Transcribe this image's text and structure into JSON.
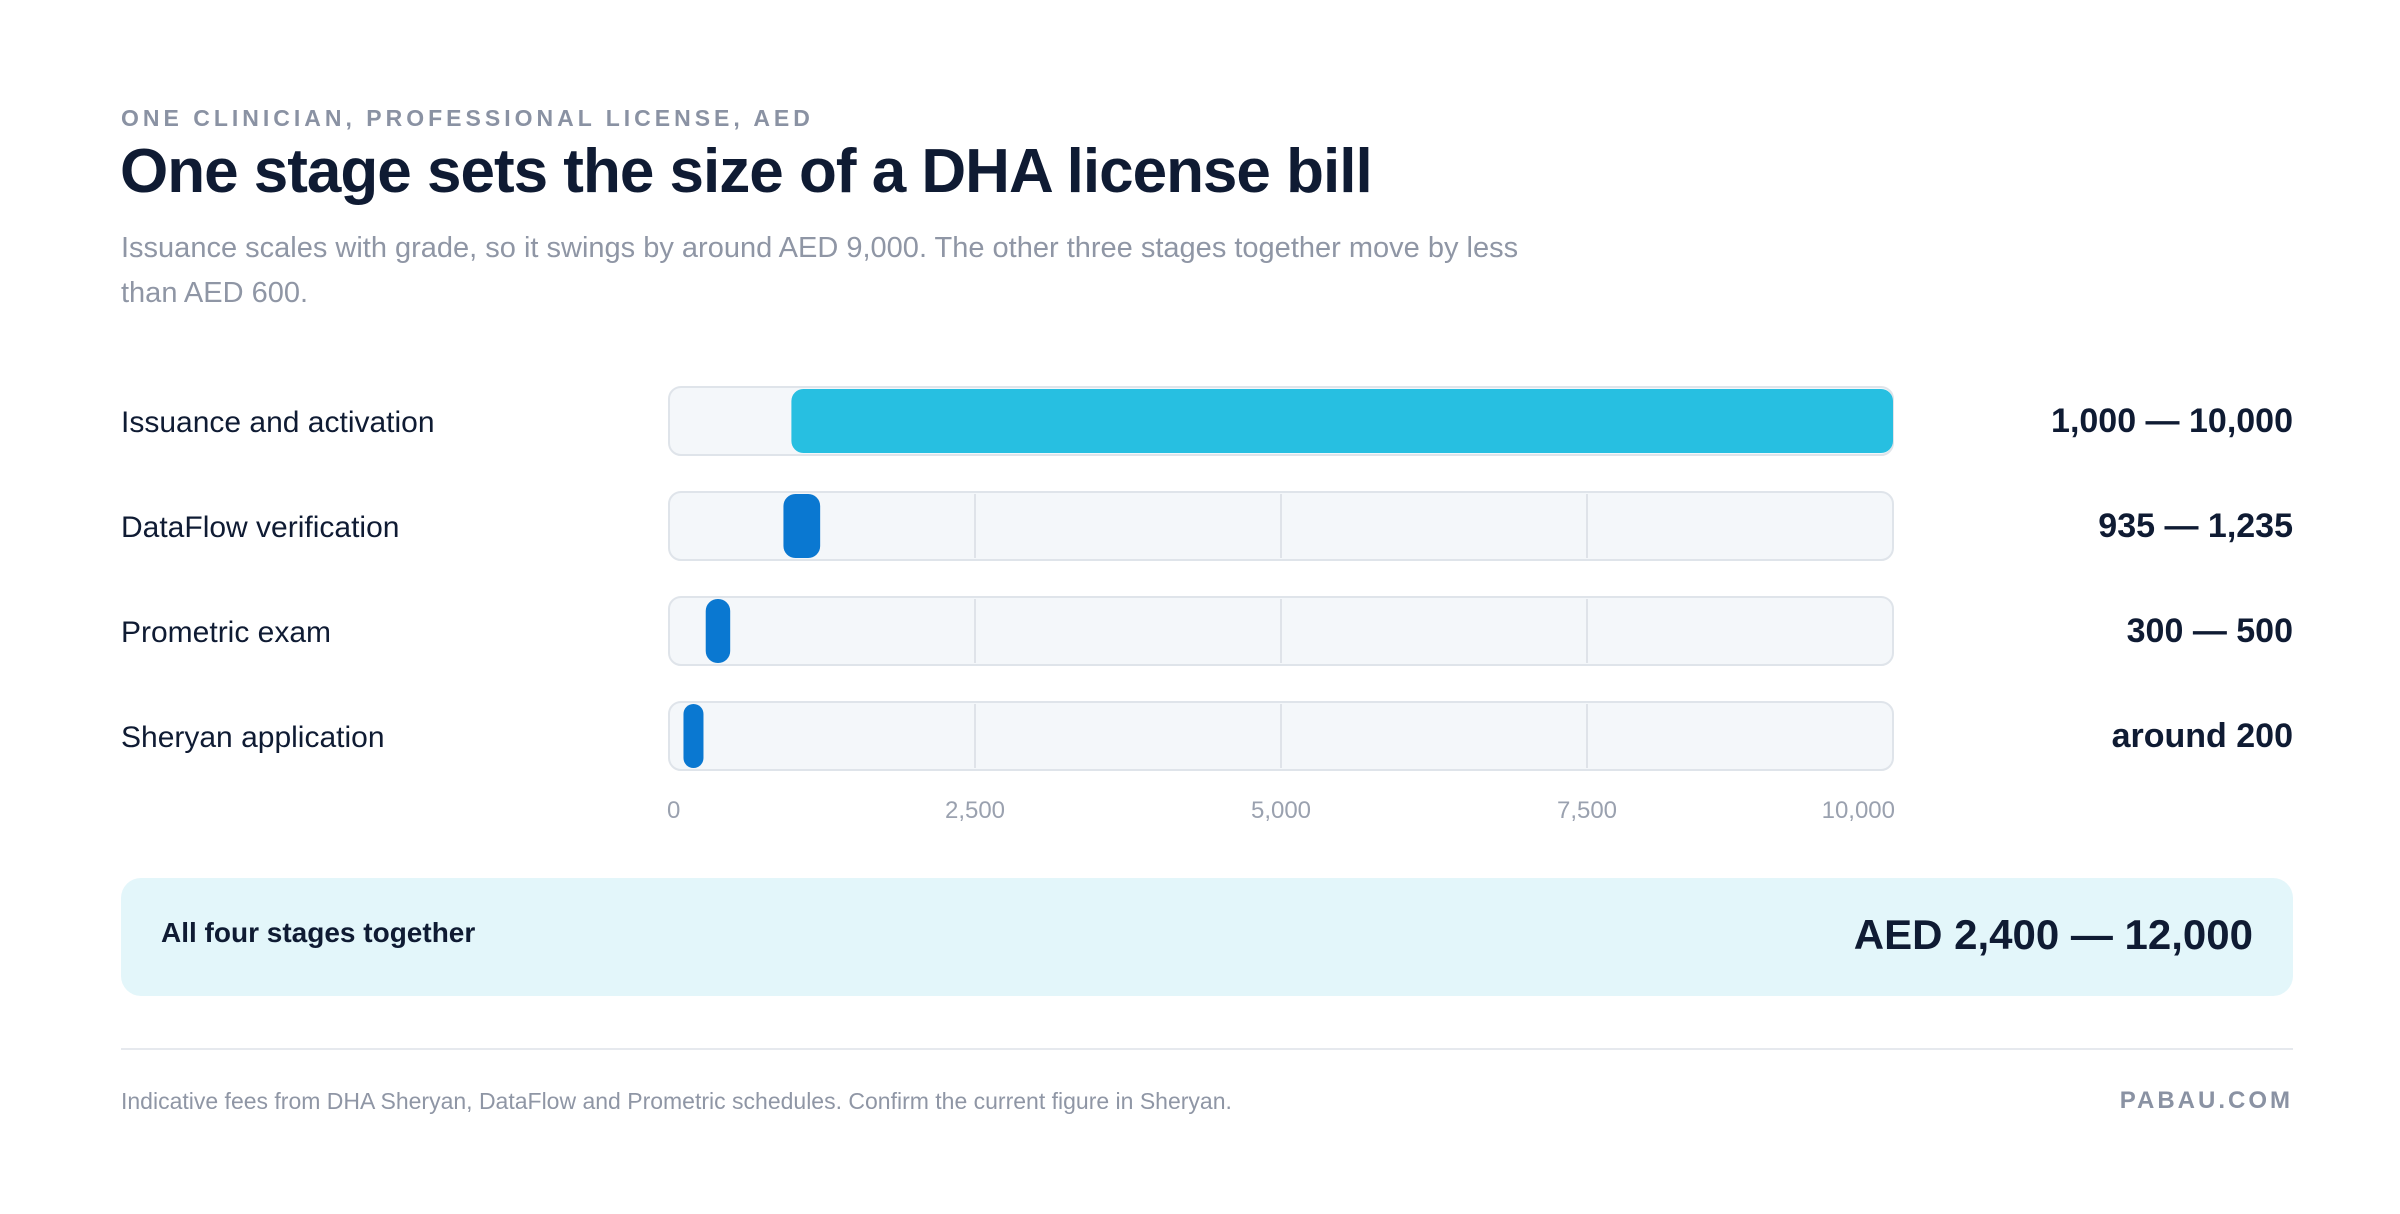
{
  "header": {
    "eyebrow": "ONE CLINICIAN, PROFESSIONAL LICENSE, AED",
    "title": "One stage sets the size of a DHA license bill",
    "subtitle": "Issuance scales with grade, so it swings by around AED 9,000. The other three stages together move by less than AED 600."
  },
  "chart_data": {
    "type": "bar",
    "orientation": "horizontal-range",
    "categories": [
      "Issuance and activation",
      "DataFlow verification",
      "Prometric exam",
      "Sheryan application"
    ],
    "series": [
      {
        "values": [
          {
            "low": 1000,
            "high": 10000
          },
          {
            "low": 935,
            "high": 1235
          },
          {
            "low": 300,
            "high": 500
          },
          {
            "low": 200,
            "high": 200
          }
        ]
      }
    ],
    "value_labels": [
      "1,000 — 10,000",
      "935 — 1,235",
      "300 — 500",
      "around 200"
    ],
    "xlim": [
      0,
      10000
    ],
    "x_ticks": [
      0,
      2500,
      5000,
      7500,
      10000
    ],
    "x_tick_labels": [
      "0",
      "2,500",
      "5,000",
      "7,500",
      "10,000"
    ],
    "grid": true,
    "colors": {
      "highlight": "#27bfe1",
      "default": "#0a78d1",
      "track": "#f4f7fa",
      "track_border": "#dfe4ea",
      "grid": "#dfe3e9"
    },
    "highlight_index": 0
  },
  "total": {
    "label": "All four stages together",
    "value": "AED 2,400 — 12,000"
  },
  "footer": {
    "note": "Indicative fees from DHA Sheryan, DataFlow and Prometric schedules. Confirm the current figure in Sheryan.",
    "brand": "PABAU.COM"
  }
}
